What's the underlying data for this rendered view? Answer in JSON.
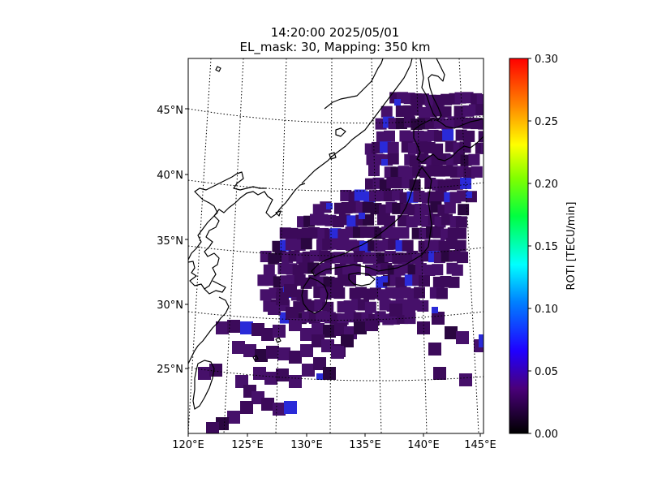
{
  "title": {
    "line1": "14:20:00 2025/05/01",
    "line2": "EL_mask: 30, Mapping: 350 km"
  },
  "map": {
    "lon_range": [
      120,
      145
    ],
    "lat_range": [
      20,
      49
    ],
    "lon_ticks": [
      "120°E",
      "125°E",
      "130°E",
      "135°E",
      "140°E",
      "145°E"
    ],
    "lat_ticks": [
      "25°N",
      "30°N",
      "35°N",
      "40°N",
      "45°N"
    ],
    "coastline_color": "#000000",
    "grid": "dotted"
  },
  "colorbar": {
    "label": "ROTI [TECU/min]",
    "min": 0.0,
    "max": 0.3,
    "ticks": [
      "0.00",
      "0.05",
      "0.10",
      "0.15",
      "0.20",
      "0.25",
      "0.30"
    ],
    "colormap": [
      "#000000",
      "#5a0080",
      "#0000ff",
      "#00ffff",
      "#00ff00",
      "#ffff00",
      "#ff8000",
      "#ff0000"
    ]
  },
  "roti_cells": {
    "dominant_value": 0.03,
    "dominant_color": "#3c0a5a",
    "enhanced_color": "#2a2ad8"
  }
}
